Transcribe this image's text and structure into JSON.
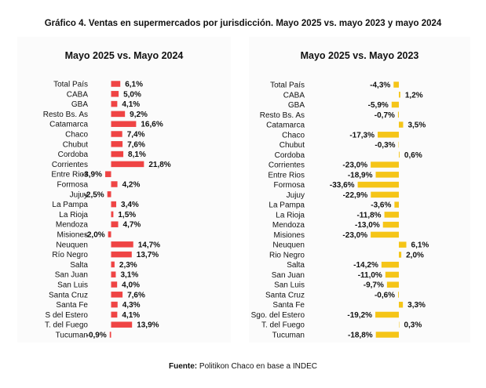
{
  "title": "Gráfico 4. Ventas en supermercados por jurisdicción. Mayo 2025 vs. mayo 2023 y mayo 2024",
  "source_label": "Fuente:",
  "source_text": "Politikon Chaco en base a INDEC",
  "colors": {
    "red": "#ef4444",
    "yellow": "#f5c518"
  },
  "chart_data": [
    {
      "type": "bar",
      "orientation": "horizontal",
      "title": "Mayo 2025 vs. Mayo 2024",
      "color": "#ef4444",
      "categories": [
        "Total País",
        "CABA",
        "GBA",
        "Resto Bs. As",
        "Catamarca",
        "Chaco",
        "Chubut",
        "Cordoba",
        "Corrientes",
        "Entre Rios",
        "Formosa",
        "Jujuy",
        "La Pampa",
        "La Rioja",
        "Mendoza",
        "Misiones",
        "Neuquen",
        "Río Negro",
        "Salta",
        "San Juan",
        "San Luis",
        "Santa Cruz",
        "Santa Fe",
        "S del Estero",
        "T. del Fuego",
        "Tucuman"
      ],
      "values": [
        6.1,
        5.0,
        4.1,
        9.2,
        16.6,
        7.4,
        7.6,
        8.1,
        21.8,
        -3.9,
        4.2,
        -2.5,
        3.4,
        1.5,
        4.7,
        -2.0,
        14.7,
        13.7,
        2.3,
        3.1,
        4.0,
        7.6,
        4.3,
        4.1,
        13.9,
        -0.9
      ],
      "labels": [
        "6,1%",
        "5,0%",
        "4,1%",
        "9,2%",
        "16,6%",
        "7,4%",
        "7,6%",
        "8,1%",
        "21,8%",
        "-3,9%",
        "4,2%",
        "-2,5%",
        "3,4%",
        "1,5%",
        "4,7%",
        "-2,0%",
        "14,7%",
        "13,7%",
        "2,3%",
        "3,1%",
        "4,0%",
        "7,6%",
        "4,3%",
        "4,1%",
        "13,9%",
        "-0,9%"
      ]
    },
    {
      "type": "bar",
      "orientation": "horizontal",
      "title": "Mayo 2025 vs. Mayo 2023",
      "color": "#f5c518",
      "categories": [
        "Total País",
        "CABA",
        "GBA",
        "Resto Bs. As",
        "Catamarca",
        "Chaco",
        "Chubut",
        "Cordoba",
        "Corrientes",
        "Entre Rios",
        "Formosa",
        "Jujuy",
        "La Pampa",
        "La Rioja",
        "Mendoza",
        "Misiones",
        "Neuquen",
        "Rio Negro",
        "Salta",
        "San Juan",
        "San Luis",
        "Santa Cruz",
        "Santa Fe",
        "Sgo. del Estero",
        "T. del Fuego",
        "Tucuman"
      ],
      "values": [
        -4.3,
        1.2,
        -5.9,
        -0.7,
        3.5,
        -17.3,
        -0.3,
        0.6,
        -23.0,
        -18.9,
        -33.6,
        -22.9,
        -3.6,
        -11.8,
        -13.0,
        -23.0,
        6.1,
        2.0,
        -14.2,
        -11.0,
        -9.7,
        -0.6,
        3.3,
        -19.2,
        0.3,
        -18.8
      ],
      "labels": [
        "-4,3%",
        "1,2%",
        "-5,9%",
        "-0,7%",
        "3,5%",
        "-17,3%",
        "-0,3%",
        "0,6%",
        "-23,0%",
        "-18,9%",
        "-33,6%",
        "-22,9%",
        "-3,6%",
        "-11,8%",
        "-13,0%",
        "-23,0%",
        "6,1%",
        "2,0%",
        "-14,2%",
        "-11,0%",
        "-9,7%",
        "-0,6%",
        "3,3%",
        "-19,2%",
        "0,3%",
        "-18,8%"
      ]
    }
  ]
}
